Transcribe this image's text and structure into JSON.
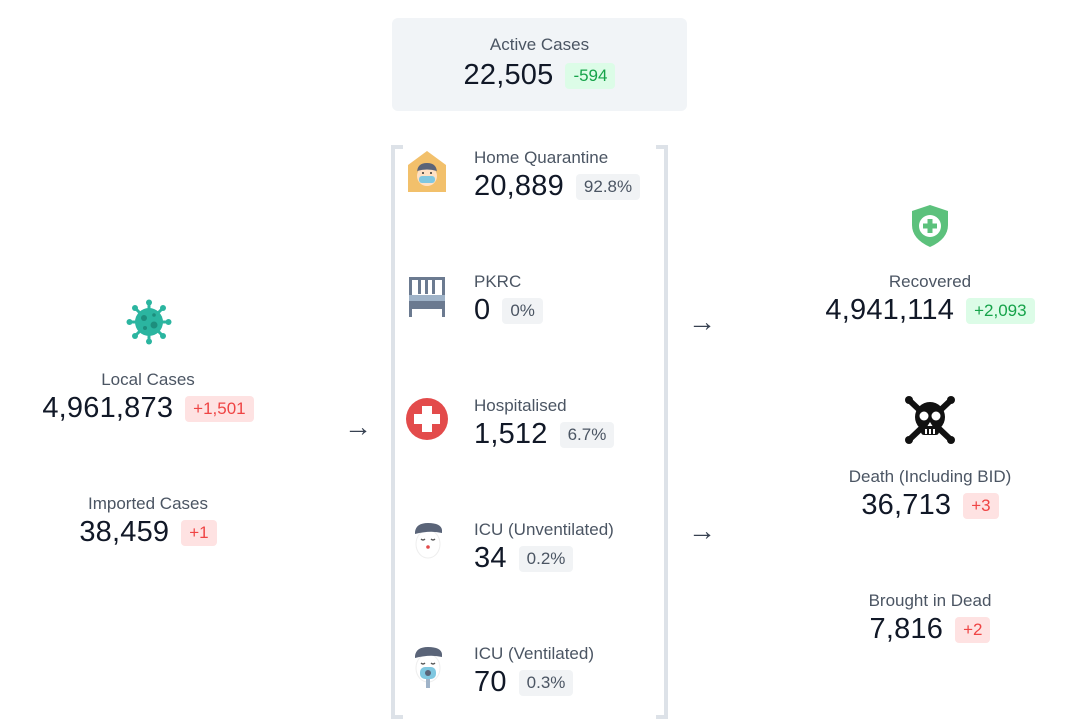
{
  "active": {
    "label": "Active Cases",
    "value": "22,505",
    "change": "-594"
  },
  "local": {
    "label": "Local Cases",
    "value": "4,961,873",
    "change": "+1,501"
  },
  "imported": {
    "label": "Imported Cases",
    "value": "38,459",
    "change": "+1"
  },
  "breakdown": [
    {
      "label": "Home Quarantine",
      "value": "20,889",
      "pct": "92.8%",
      "icon": "home-quarantine-icon"
    },
    {
      "label": "PKRC",
      "value": "0",
      "pct": "0%",
      "icon": "bed-icon"
    },
    {
      "label": "Hospitalised",
      "value": "1,512",
      "pct": "6.7%",
      "icon": "hospital-cross-icon"
    },
    {
      "label": "ICU (Unventilated)",
      "value": "34",
      "pct": "0.2%",
      "icon": "patient-icon"
    },
    {
      "label": "ICU (Ventilated)",
      "value": "70",
      "pct": "0.3%",
      "icon": "ventilated-patient-icon"
    }
  ],
  "recovered": {
    "label": "Recovered",
    "value": "4,941,114",
    "change": "+2,093",
    "icon": "shield-plus-icon"
  },
  "death": {
    "label": "Death (Including BID)",
    "value": "36,713",
    "change": "+3",
    "icon": "skull-crossbones-icon"
  },
  "bid": {
    "label": "Brought in Dead",
    "value": "7,816",
    "change": "+2"
  },
  "arrows": {
    "glyph": "→"
  },
  "colors": {
    "green": "#16a34a",
    "red": "#ef4444",
    "virus": "#2bb5a0",
    "shield": "#5cc17c",
    "hospital": "#e34b4b",
    "house": "#f2c06b",
    "bed": "#6b7a90"
  }
}
